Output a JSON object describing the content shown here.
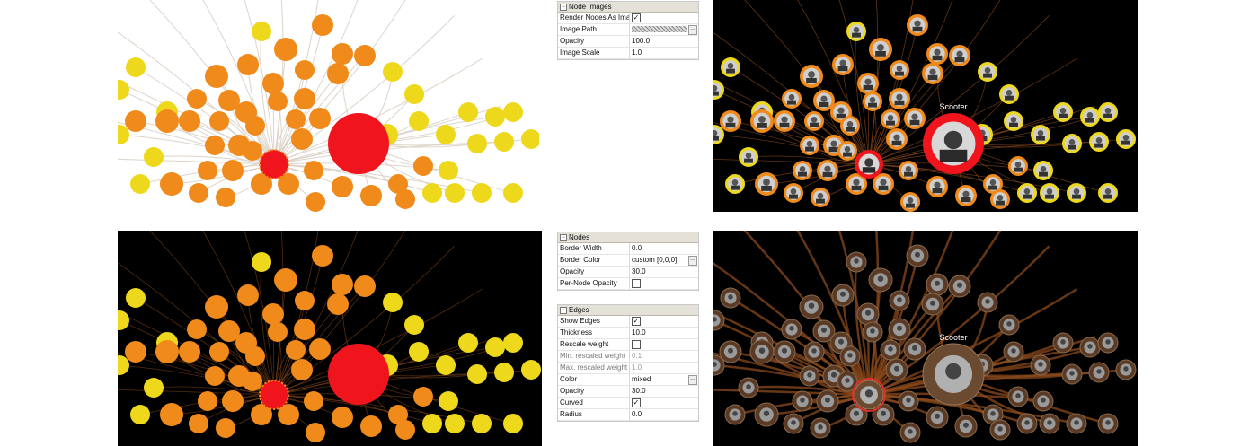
{
  "graph_label": "Scooter",
  "node_images_panel": {
    "header": "Node Images",
    "rows": [
      {
        "key": "Render Nodes As Image",
        "type": "checkbox",
        "checked": true
      },
      {
        "key": "Image Path",
        "type": "path",
        "value": ""
      },
      {
        "key": "Opacity",
        "type": "text",
        "value": "100.0"
      },
      {
        "key": "Image Scale",
        "type": "text",
        "value": "1.0"
      }
    ]
  },
  "nodes_panel": {
    "header": "Nodes",
    "rows": [
      {
        "key": "Border Width",
        "type": "text",
        "value": "0.0"
      },
      {
        "key": "Border Color",
        "type": "text",
        "value": "custom [0,0,0]",
        "has_button": true
      },
      {
        "key": "Opacity",
        "type": "text",
        "value": "30.0"
      },
      {
        "key": "Per-Node Opacity",
        "type": "checkbox",
        "checked": false
      }
    ]
  },
  "edges_panel": {
    "header": "Edges",
    "rows": [
      {
        "key": "Show Edges",
        "type": "checkbox",
        "checked": true
      },
      {
        "key": "Thickness",
        "type": "text",
        "value": "10.0"
      },
      {
        "key": "Rescale weight",
        "type": "checkbox",
        "checked": false
      },
      {
        "key": "Min. rescaled weight",
        "type": "text",
        "value": "0.1",
        "disabled": true
      },
      {
        "key": "Max. rescaled weight",
        "type": "text",
        "value": "1.0",
        "disabled": true
      },
      {
        "key": "Color",
        "type": "text",
        "value": "mixed",
        "has_button": true
      },
      {
        "key": "Opacity",
        "type": "text",
        "value": "30.0"
      },
      {
        "key": "Curved",
        "type": "checkbox",
        "checked": true
      },
      {
        "key": "Radius",
        "type": "text",
        "value": "0.0"
      }
    ]
  },
  "colors": {
    "node_red": "#f0141c",
    "node_orange": "#f08a1a",
    "node_light_orange": "#f5a623",
    "node_yellow": "#eed81c",
    "edge_light": "#d9cfc4",
    "edge_brown": "#8a4a1c",
    "panel_header": "#e4e1d8"
  }
}
